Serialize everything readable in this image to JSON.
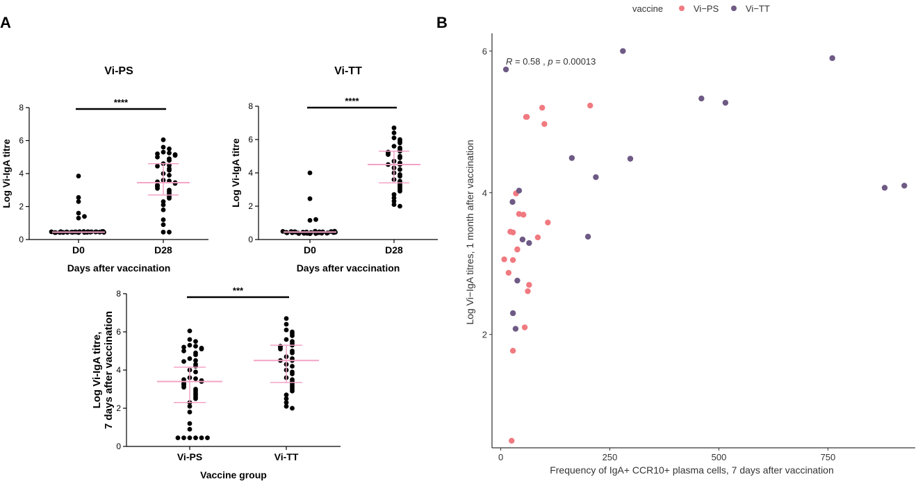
{
  "panels": {
    "a": "A",
    "b": "B"
  },
  "colors": {
    "vi_ps": "#F07A80",
    "vi_tt": "#6E5A85",
    "median": "#F3A3C6",
    "dot": "#000000"
  },
  "chart_data": [
    {
      "id": "vips",
      "type": "scatter",
      "title": "Vi-PS",
      "xlabel": "Days after vaccination",
      "ylabel": "Log Vi-IgA titre",
      "ylim": [
        0,
        8
      ],
      "yticks": [
        0,
        2,
        4,
        6,
        8
      ],
      "categories": [
        "D0",
        "D28"
      ],
      "significance": "****",
      "series": [
        {
          "name": "D0",
          "values": [
            0.42,
            0.43,
            0.44,
            0.45,
            0.46,
            0.47,
            0.48,
            0.49,
            0.42,
            0.44,
            0.46,
            0.48,
            0.43,
            0.45,
            0.47,
            0.49,
            0.44,
            0.46,
            0.42,
            0.48,
            0.45,
            0.47,
            0.43,
            0.49,
            0.46,
            0.44,
            1.3,
            1.4,
            1.6,
            2.3,
            2.55,
            3.85
          ],
          "median": 0.45,
          "q1": 0.45,
          "q3": 0.45
        },
        {
          "name": "D28",
          "values": [
            6.05,
            5.6,
            5.5,
            5.3,
            5.25,
            5.2,
            5.15,
            5.1,
            5.0,
            4.9,
            4.8,
            4.6,
            4.5,
            4.45,
            4.3,
            4.2,
            4.0,
            3.9,
            3.6,
            3.55,
            3.5,
            3.45,
            3.4,
            3.3,
            3.25,
            3.2,
            3.1,
            3.0,
            2.9,
            2.8,
            2.7,
            2.6,
            2.5,
            2.3,
            2.1,
            1.8,
            1.2,
            0.9,
            0.45,
            0.45
          ],
          "median": 3.45,
          "q1": 2.7,
          "q3": 4.6
        }
      ]
    },
    {
      "id": "vitt",
      "type": "scatter",
      "title": "Vi-TT",
      "xlabel": "Days after vaccination",
      "ylabel": "Log Vi-IgA titre",
      "ylim": [
        0,
        8
      ],
      "yticks": [
        0,
        2,
        4,
        6,
        8
      ],
      "categories": [
        "D0",
        "D28"
      ],
      "significance": "****",
      "series": [
        {
          "name": "D0",
          "values": [
            0.35,
            0.36,
            0.37,
            0.38,
            0.39,
            0.4,
            0.41,
            0.42,
            0.43,
            0.44,
            0.45,
            0.46,
            0.47,
            0.48,
            0.49,
            0.5,
            0.36,
            0.38,
            0.4,
            0.42,
            0.44,
            0.46,
            0.48,
            0.5,
            0.37,
            0.41,
            0.45,
            1.15,
            1.2,
            2.45,
            4.0
          ],
          "median": 0.45,
          "q1": 0.45,
          "q3": 0.45
        },
        {
          "name": "D28",
          "values": [
            6.7,
            6.4,
            6.1,
            6.0,
            5.9,
            5.8,
            5.6,
            5.5,
            5.4,
            5.3,
            5.25,
            5.2,
            5.1,
            5.0,
            4.9,
            4.7,
            4.6,
            4.5,
            4.5,
            4.3,
            4.2,
            4.0,
            3.9,
            3.8,
            3.6,
            3.5,
            3.4,
            3.3,
            3.2,
            3.1,
            3.0,
            2.9,
            2.7,
            2.5,
            2.3,
            2.1,
            2.0
          ],
          "median": 4.5,
          "q1": 3.4,
          "q3": 5.3
        }
      ]
    },
    {
      "id": "group",
      "type": "scatter",
      "title": "",
      "xlabel": "Vaccine group",
      "ylabel_lines": [
        "Log Vi-IgA titre,",
        "7 days after vaccination"
      ],
      "ylim": [
        0,
        8
      ],
      "yticks": [
        0,
        2,
        4,
        6,
        8
      ],
      "categories": [
        "Vi-PS",
        "Vi-TT"
      ],
      "significance": "***",
      "series": [
        {
          "name": "Vi-PS",
          "values": [
            6.05,
            5.6,
            5.5,
            5.3,
            5.25,
            5.2,
            5.15,
            5.1,
            5.0,
            4.9,
            4.8,
            4.6,
            4.5,
            4.45,
            4.3,
            4.2,
            4.0,
            3.9,
            3.6,
            3.55,
            3.5,
            3.45,
            3.4,
            3.3,
            3.25,
            3.2,
            3.1,
            3.0,
            2.9,
            2.8,
            2.7,
            2.6,
            2.5,
            2.3,
            2.1,
            1.8,
            1.2,
            0.9,
            0.45,
            0.45,
            0.45,
            0.45,
            0.45,
            0.45
          ],
          "median": 3.4,
          "q1": 2.3,
          "q3": 4.15
        },
        {
          "name": "Vi-TT",
          "values": [
            6.7,
            6.4,
            6.1,
            6.0,
            5.9,
            5.8,
            5.6,
            5.5,
            5.4,
            5.3,
            5.25,
            5.2,
            5.1,
            5.0,
            4.9,
            4.7,
            4.6,
            4.5,
            4.5,
            4.3,
            4.2,
            4.0,
            3.9,
            3.8,
            3.6,
            3.5,
            3.4,
            3.3,
            3.2,
            3.1,
            3.0,
            2.9,
            2.7,
            2.5,
            2.3,
            2.1,
            2.0
          ],
          "median": 4.5,
          "q1": 3.35,
          "q3": 5.3
        }
      ]
    },
    {
      "id": "corr",
      "type": "scatter",
      "title": "",
      "xlabel": "Frequency of IgA+ CCR10+ plasma cells, 7 days after vaccination",
      "ylabel": "Log Vi−IgA titres, 1 month after vaccination",
      "xlim": [
        -20,
        950
      ],
      "ylim": [
        0.4,
        6.25
      ],
      "xticks": [
        0,
        250,
        500,
        750
      ],
      "yticks": [
        2,
        4,
        6
      ],
      "annotation": {
        "r_label": "R",
        "r_text": " = 0.58 , ",
        "p_label": "p",
        "p_text": " = 0.00013"
      },
      "legend": {
        "title": "vaccine",
        "position": "top"
      },
      "series": [
        {
          "name": "Vi−PS",
          "x": [
            205,
            95,
            100,
            58,
            60,
            35,
            28,
            42,
            38,
            52,
            108,
            85,
            38,
            22,
            18,
            28,
            65,
            62,
            55,
            28,
            25,
            8
          ],
          "y": [
            5.23,
            5.2,
            4.97,
            5.07,
            5.07,
            3.99,
            3.44,
            3.7,
            3.2,
            3.69,
            3.58,
            3.37,
            3.2,
            3.45,
            2.87,
            3.05,
            2.7,
            2.61,
            2.1,
            1.77,
            0.5,
            3.06
          ]
        },
        {
          "name": "Vi−TT",
          "x": [
            280,
            760,
            12,
            460,
            515,
            163,
            297,
            218,
            42,
            27,
            50,
            65,
            200,
            38,
            28,
            34
          ],
          "y": [
            6.0,
            5.9,
            5.74,
            5.33,
            5.27,
            4.49,
            4.48,
            4.22,
            4.03,
            3.87,
            3.34,
            3.29,
            3.38,
            2.76,
            2.3,
            2.08
          ]
        },
        {
          "name": "Vi−TT",
          "x": [
            880,
            925
          ],
          "y": [
            4.07,
            4.1
          ]
        }
      ]
    }
  ]
}
